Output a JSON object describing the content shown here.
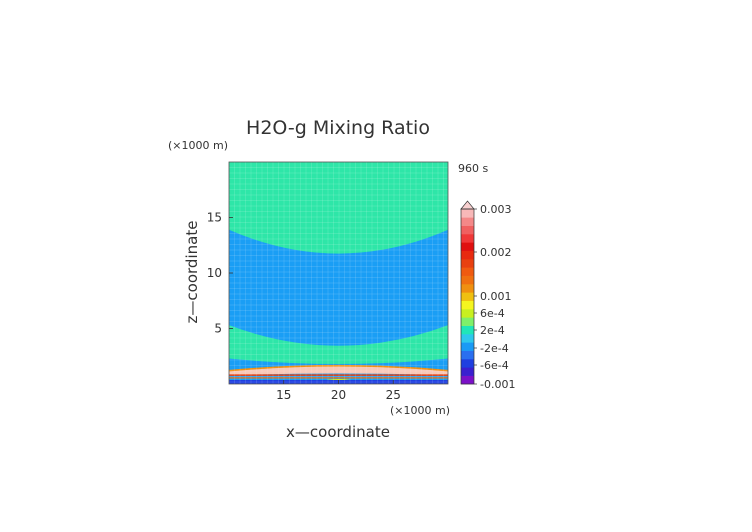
{
  "chart_data": {
    "type": "heatmap",
    "title": "H2O-g Mixing Ratio",
    "xlabel": "x—coordinate",
    "ylabel": "z—coordinate",
    "x_unit": "(×1000 m)",
    "y_unit": "(×1000 m)",
    "time_label": "960 s",
    "xlim": [
      10,
      30
    ],
    "ylim": [
      0,
      20
    ],
    "x_ticks": [
      15,
      20,
      25
    ],
    "y_ticks": [
      5,
      10,
      15
    ],
    "grid": false,
    "legend_position": "right",
    "colorbar_labels": [
      {
        "label": "0.003",
        "value": 0.003
      },
      {
        "label": "0.002",
        "value": 0.002
      },
      {
        "label": "0.001",
        "value": 0.001
      },
      {
        "label": "6e-4",
        "value": 0.0006
      },
      {
        "label": "2e-4",
        "value": 0.0002
      },
      {
        "label": "-2e-4",
        "value": -0.0002
      },
      {
        "label": "-6e-4",
        "value": -0.0006
      },
      {
        "label": "-0.001",
        "value": -0.001
      }
    ],
    "colorbar_colors": [
      "#7b10c8",
      "#3a1fcf",
      "#1f3fe0",
      "#2a6ff0",
      "#1a9af5",
      "#2ec8ec",
      "#20e6b8",
      "#7ff06a",
      "#c8f020",
      "#f5f520",
      "#f0c010",
      "#f09010",
      "#f07010",
      "#f05a10",
      "#e84010",
      "#e82a10",
      "#e01010",
      "#f03838",
      "#f06060",
      "#f48888",
      "#f8b8b8"
    ],
    "regions": [
      {
        "name": "upper-green",
        "color": "#2ee6a8"
      },
      {
        "name": "blue",
        "color": "#1a9ef5"
      },
      {
        "name": "lower-green",
        "color": "#2ee6a8"
      },
      {
        "name": "orange-band",
        "color": "#f09010"
      },
      {
        "name": "pink-band",
        "color": "#f8c8b8"
      }
    ]
  }
}
